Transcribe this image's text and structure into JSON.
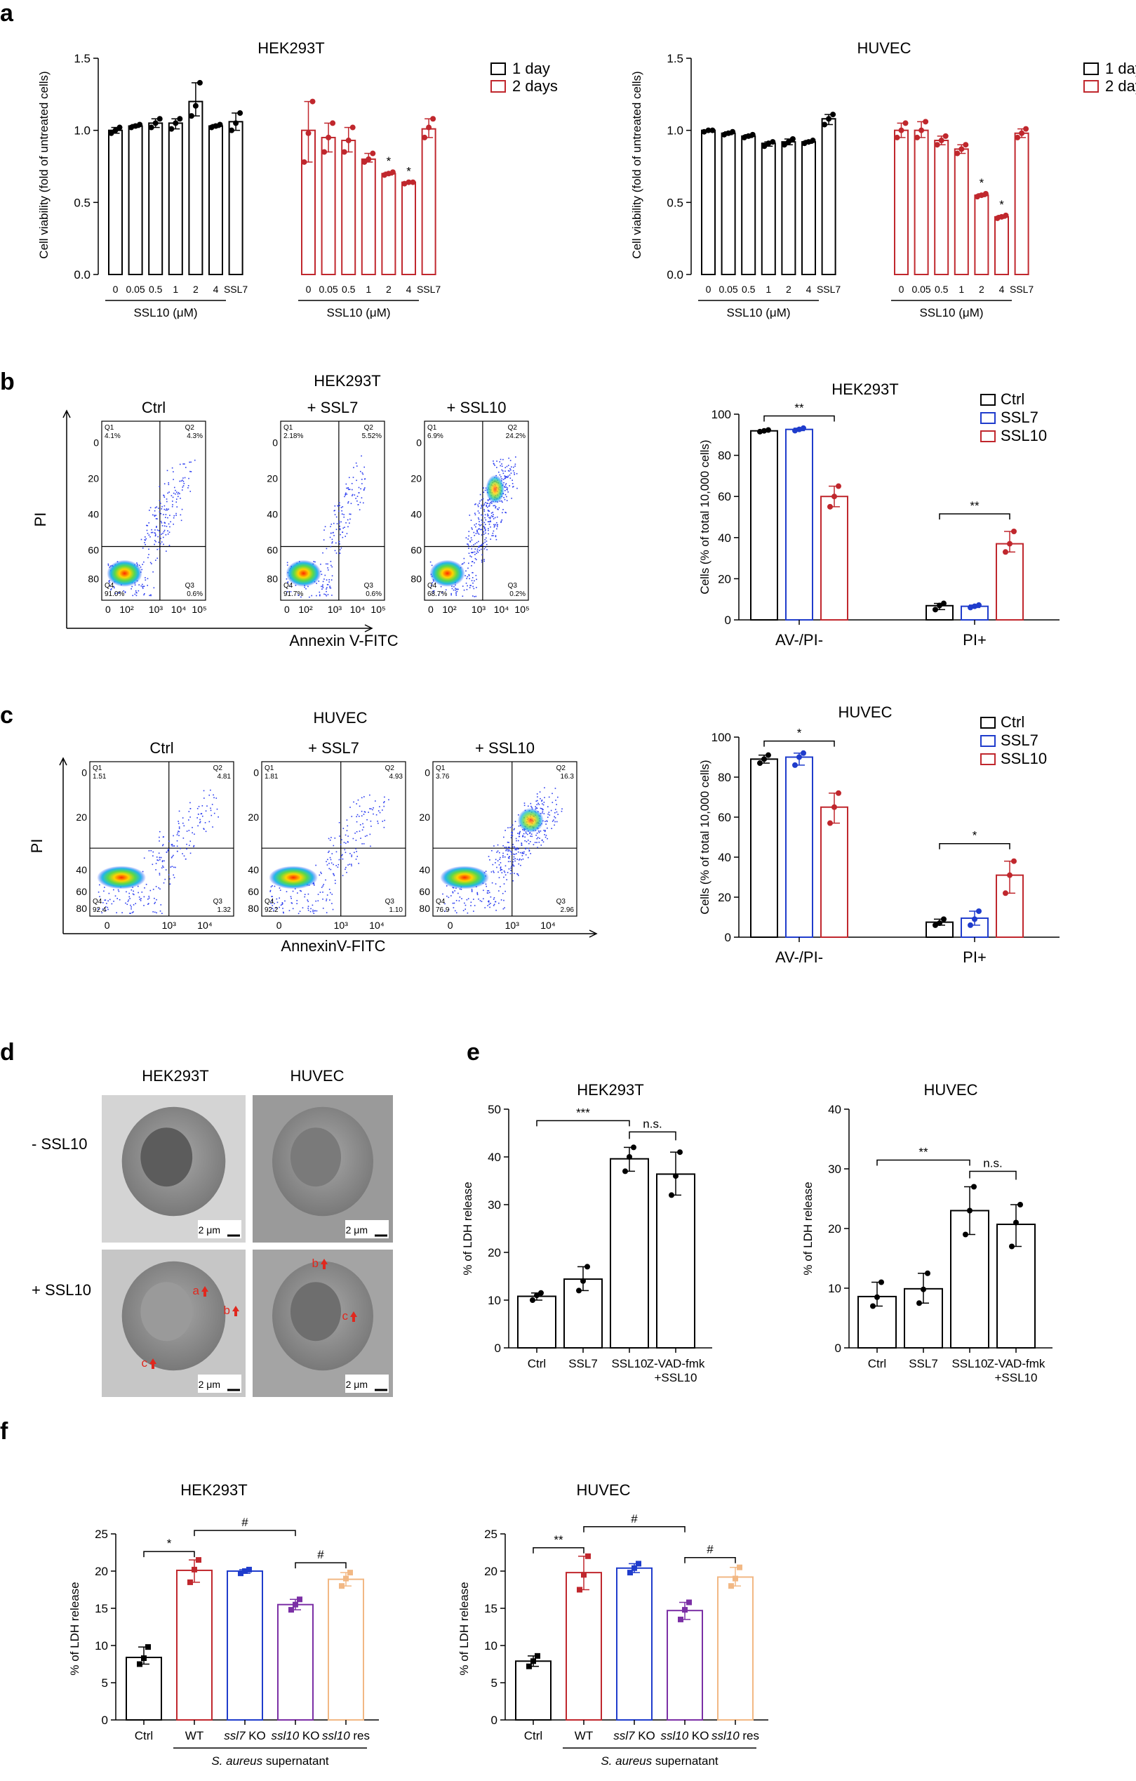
{
  "colors": {
    "black": "#000000",
    "red": "#c0272d",
    "blue": "#1f3ccc",
    "purple": "#7b2fa5",
    "orange": "#f2b884",
    "arrow_red": "#e0281e"
  },
  "panel_labels": {
    "a": "a",
    "b": "b",
    "c": "c",
    "d": "d",
    "e": "e",
    "f": "f"
  },
  "panel_a": {
    "legend": {
      "day1": "1 day",
      "day2": "2 days"
    },
    "ylabel": "Cell viability (fold of untreated cells)",
    "group_label": "SSL10 (μM)",
    "xcats": [
      "0",
      "0.05",
      "0.5",
      "1",
      "2",
      "4",
      "SSL7"
    ],
    "yticks": [
      "0.0",
      "0.5",
      "1.0",
      "1.5"
    ]
  },
  "panel_b": {
    "title": "HEK293T",
    "flow_titles": [
      "Ctrl",
      "+ SSL7",
      "+ SSL10"
    ],
    "xlabel": "Annexin V-FITC",
    "ylabel": "PI",
    "xticks": [
      "0",
      "10²",
      "10³",
      "10⁴",
      "10⁵"
    ],
    "yticks": [
      "0",
      "20",
      "40",
      "60",
      "80",
      "100"
    ],
    "quadrants": [
      {
        "q1": "Q1",
        "q1v": "4.1%",
        "q2": "Q2",
        "q2v": "4.3%",
        "q3": "Q3",
        "q3v": "0.6%",
        "q4": "Q4",
        "q4v": "91.0%"
      },
      {
        "q1": "Q1",
        "q1v": "2.18%",
        "q2": "Q2",
        "q2v": "5.52%",
        "q3": "Q3",
        "q3v": "0.6%",
        "q4": "Q4",
        "q4v": "91.7%"
      },
      {
        "q1": "Q1",
        "q1v": "6.9%",
        "q2": "Q2",
        "q2v": "24.2%",
        "q3": "Q3",
        "q3v": "0.2%",
        "q4": "Q4",
        "q4v": "68.7%"
      }
    ],
    "bar_title": "HEK293T",
    "bar_ylabel": "Cells (% of total 10,000 cells)",
    "legend": [
      "Ctrl",
      "SSL7",
      "SSL10"
    ],
    "groups": [
      "AV-/PI-",
      "PI+"
    ],
    "sig": [
      "**",
      "**"
    ]
  },
  "panel_c": {
    "title": "HUVEC",
    "flow_titles": [
      "Ctrl",
      "+ SSL7",
      "+ SSL10"
    ],
    "xlabel": "AnnexinV-FITC",
    "ylabel": "PI",
    "xticks": [
      "0",
      "10³",
      "10⁴"
    ],
    "yticks": [
      "0",
      "20",
      "40",
      "60",
      "80",
      "100"
    ],
    "quadrants": [
      {
        "q1": "Q1",
        "q1v": "1.51",
        "q2": "Q2",
        "q2v": "4.81",
        "q3": "Q3",
        "q3v": "1.32",
        "q4": "Q4",
        "q4v": "92.4"
      },
      {
        "q1": "Q1",
        "q1v": "1.81",
        "q2": "Q2",
        "q2v": "4.93",
        "q3": "Q3",
        "q3v": "1.10",
        "q4": "Q4",
        "q4v": "92.2"
      },
      {
        "q1": "Q1",
        "q1v": "3.76",
        "q2": "Q2",
        "q2v": "16.3",
        "q3": "Q3",
        "q3v": "2.96",
        "q4": "Q4",
        "q4v": "76.9"
      }
    ],
    "bar_title": "HUVEC",
    "bar_ylabel": "Cells (% of total 10,000 cells)",
    "legend": [
      "Ctrl",
      "SSL7",
      "SSL10"
    ],
    "groups": [
      "AV-/PI-",
      "PI+"
    ],
    "sig": [
      "*",
      "*"
    ]
  },
  "panel_d": {
    "cols": [
      "HEK293T",
      "HUVEC"
    ],
    "rows": [
      "- SSL10",
      "+ SSL10"
    ],
    "scale": "2 μm",
    "arrows": [
      "a",
      "b",
      "c"
    ]
  },
  "panel_e": {
    "ylabel": "% of LDH release",
    "cats": [
      "Ctrl",
      "SSL7",
      "SSL10",
      "Z-VAD-fmk",
      "+SSL10"
    ],
    "ns": "n.s."
  },
  "panel_f": {
    "ylabel": "% of LDH release",
    "cats": [
      "Ctrl",
      "WT",
      "ssl7",
      "KO",
      "ssl10",
      "KO",
      "ssl10",
      "res"
    ],
    "supernatant_italic": "S. aureus",
    "supernatant_rest": "supernatant",
    "hash": "#"
  },
  "chart_data": [
    {
      "type": "bar",
      "title": "HEK293T",
      "ylabel": "Cell viability (fold of untreated cells)",
      "xlabel": "SSL10 (μM)",
      "ylim": [
        0,
        1.5
      ],
      "categories": [
        "0",
        "0.05",
        "0.5",
        "1",
        "2",
        "4",
        "SSL7"
      ],
      "series": [
        {
          "name": "1 day",
          "values": [
            1.0,
            1.03,
            1.05,
            1.05,
            1.2,
            1.03,
            1.06
          ],
          "points": [
            [
              0.98,
              1.0,
              1.02
            ],
            [
              1.02,
              1.03,
              1.04
            ],
            [
              1.02,
              1.05,
              1.08
            ],
            [
              1.01,
              1.05,
              1.08
            ],
            [
              1.1,
              1.17,
              1.33
            ],
            [
              1.02,
              1.03,
              1.04
            ],
            [
              1.0,
              1.05,
              1.12
            ]
          ]
        },
        {
          "name": "2 days",
          "values": [
            1.0,
            0.95,
            0.93,
            0.8,
            0.7,
            0.64,
            1.01
          ],
          "points": [
            [
              0.78,
              0.98,
              1.2
            ],
            [
              0.85,
              0.95,
              1.05
            ],
            [
              0.85,
              0.93,
              1.02
            ],
            [
              0.78,
              0.8,
              0.84
            ],
            [
              0.69,
              0.7,
              0.71
            ],
            [
              0.63,
              0.64,
              0.64
            ],
            [
              0.95,
              1.02,
              1.08
            ]
          ]
        }
      ],
      "sig": {
        "2 days": {
          "2": "*",
          "4": "*"
        }
      }
    },
    {
      "type": "bar",
      "title": "HUVEC",
      "ylabel": "Cell viability (fold of untreated cells)",
      "xlabel": "SSL10 (μM)",
      "ylim": [
        0,
        1.5
      ],
      "categories": [
        "0",
        "0.05",
        "0.5",
        "1",
        "2",
        "4",
        "SSL7"
      ],
      "series": [
        {
          "name": "1 day",
          "values": [
            1.0,
            0.98,
            0.96,
            0.91,
            0.92,
            0.92,
            1.08
          ],
          "points": [
            [
              0.99,
              1.0,
              1.0
            ],
            [
              0.97,
              0.98,
              0.99
            ],
            [
              0.95,
              0.96,
              0.97
            ],
            [
              0.89,
              0.91,
              0.92
            ],
            [
              0.9,
              0.92,
              0.94
            ],
            [
              0.91,
              0.92,
              0.93
            ],
            [
              1.04,
              1.08,
              1.11
            ]
          ]
        },
        {
          "name": "2 days",
          "values": [
            1.0,
            1.0,
            0.93,
            0.87,
            0.55,
            0.4,
            0.98
          ],
          "points": [
            [
              0.95,
              1.0,
              1.05
            ],
            [
              0.95,
              1.0,
              1.06
            ],
            [
              0.9,
              0.93,
              0.96
            ],
            [
              0.84,
              0.87,
              0.9
            ],
            [
              0.54,
              0.55,
              0.56
            ],
            [
              0.39,
              0.4,
              0.41
            ],
            [
              0.95,
              0.98,
              1.01
            ]
          ]
        }
      ],
      "sig": {
        "2 days": {
          "2": "*",
          "4": "*"
        }
      }
    },
    {
      "type": "bar",
      "title": "HEK293T",
      "ylabel": "Cells (% of total 10,000 cells)",
      "ylim": [
        0,
        100
      ],
      "categories": [
        "AV-/PI-",
        "PI+"
      ],
      "series": [
        {
          "name": "Ctrl",
          "values": [
            91.9,
            6.9
          ],
          "points": [
            [
              91.5,
              91.9,
              92.3
            ],
            [
              5,
              7,
              8
            ]
          ]
        },
        {
          "name": "SSL7",
          "values": [
            92.6,
            6.6
          ],
          "points": [
            [
              92,
              92.6,
              93.2
            ],
            [
              6,
              6.6,
              7.2
            ]
          ]
        },
        {
          "name": "SSL10",
          "values": [
            60,
            37
          ],
          "points": [
            [
              55,
              60,
              65
            ],
            [
              33,
              37,
              43
            ]
          ]
        }
      ],
      "sig": [
        "**",
        "**"
      ]
    },
    {
      "type": "bar",
      "title": "HUVEC",
      "ylabel": "Cells (% of total 10,000 cells)",
      "ylim": [
        0,
        100
      ],
      "categories": [
        "AV-/PI-",
        "PI+"
      ],
      "series": [
        {
          "name": "Ctrl",
          "values": [
            89,
            7.5
          ],
          "points": [
            [
              87,
              89,
              91
            ],
            [
              6,
              7,
              9
            ]
          ]
        },
        {
          "name": "SSL7",
          "values": [
            90,
            9.5
          ],
          "points": [
            [
              86,
              90,
              92
            ],
            [
              6,
              9,
              13
            ]
          ]
        },
        {
          "name": "SSL10",
          "values": [
            65,
            31
          ],
          "points": [
            [
              57,
              65,
              72
            ],
            [
              22,
              31,
              38
            ]
          ]
        }
      ],
      "sig": [
        "*",
        "*"
      ]
    },
    {
      "type": "bar",
      "title": "HEK293T",
      "ylabel": "% of LDH release",
      "ylim": [
        0,
        50
      ],
      "categories": [
        "Ctrl",
        "SSL7",
        "SSL10",
        "Z-VAD-fmk +SSL10"
      ],
      "values": [
        10.8,
        14.4,
        39.6,
        36.4
      ],
      "points": [
        [
          10,
          11,
          11.5
        ],
        [
          12,
          14,
          17
        ],
        [
          37,
          40,
          42
        ],
        [
          32,
          36,
          41
        ]
      ],
      "sig": [
        {
          "pair": [
            "Ctrl",
            "SSL10"
          ],
          "label": "***"
        },
        {
          "pair": [
            "SSL10",
            "Z-VAD-fmk +SSL10"
          ],
          "label": "n.s."
        }
      ]
    },
    {
      "type": "bar",
      "title": "HUVEC",
      "ylabel": "% of LDH release",
      "ylim": [
        0,
        40
      ],
      "categories": [
        "Ctrl",
        "SSL7",
        "SSL10",
        "Z-VAD-fmk +SSL10"
      ],
      "values": [
        8.6,
        9.9,
        23,
        20.7
      ],
      "points": [
        [
          7,
          8.5,
          11
        ],
        [
          7.5,
          9.8,
          12.5
        ],
        [
          19,
          23,
          27
        ],
        [
          17,
          21,
          24
        ]
      ],
      "sig": [
        {
          "pair": [
            "Ctrl",
            "SSL10"
          ],
          "label": "**"
        },
        {
          "pair": [
            "SSL10",
            "Z-VAD-fmk +SSL10"
          ],
          "label": "n.s."
        }
      ]
    },
    {
      "type": "bar",
      "title": "HEK293T",
      "ylabel": "% of LDH release",
      "ylim": [
        0,
        25
      ],
      "categories": [
        "Ctrl",
        "WT",
        "ssl7 KO",
        "ssl10 KO",
        "ssl10 res"
      ],
      "xlabel": "S. aureus supernatant",
      "values": [
        8.4,
        20.1,
        20.0,
        15.5,
        18.9
      ],
      "points": [
        [
          7.5,
          8.3,
          9.8
        ],
        [
          18.5,
          20.2,
          21.5
        ],
        [
          19.7,
          20,
          20.2
        ],
        [
          14.8,
          15.5,
          16.2
        ],
        [
          18,
          19,
          19.8
        ]
      ],
      "sig": [
        {
          "pair": [
            "Ctrl",
            "WT"
          ],
          "label": "*"
        },
        {
          "pair": [
            "WT",
            "ssl10 KO"
          ],
          "label": "#"
        },
        {
          "pair": [
            "ssl10 KO",
            "ssl10 res"
          ],
          "label": "#"
        }
      ]
    },
    {
      "type": "bar",
      "title": "HUVEC",
      "ylabel": "% of LDH release",
      "ylim": [
        0,
        25
      ],
      "categories": [
        "Ctrl",
        "WT",
        "ssl7 KO",
        "ssl10 KO",
        "ssl10 res"
      ],
      "xlabel": "S. aureus supernatant",
      "values": [
        7.9,
        19.8,
        20.4,
        14.7,
        19.2
      ],
      "points": [
        [
          7.2,
          7.9,
          8.6
        ],
        [
          17.5,
          19.5,
          22
        ],
        [
          19.8,
          20.4,
          21
        ],
        [
          13.5,
          14.8,
          15.8
        ],
        [
          18,
          19,
          20.5
        ]
      ],
      "sig": [
        {
          "pair": [
            "Ctrl",
            "WT"
          ],
          "label": "**"
        },
        {
          "pair": [
            "WT",
            "ssl10 KO"
          ],
          "label": "#"
        },
        {
          "pair": [
            "ssl10 KO",
            "ssl10 res"
          ],
          "label": "#"
        }
      ]
    }
  ]
}
